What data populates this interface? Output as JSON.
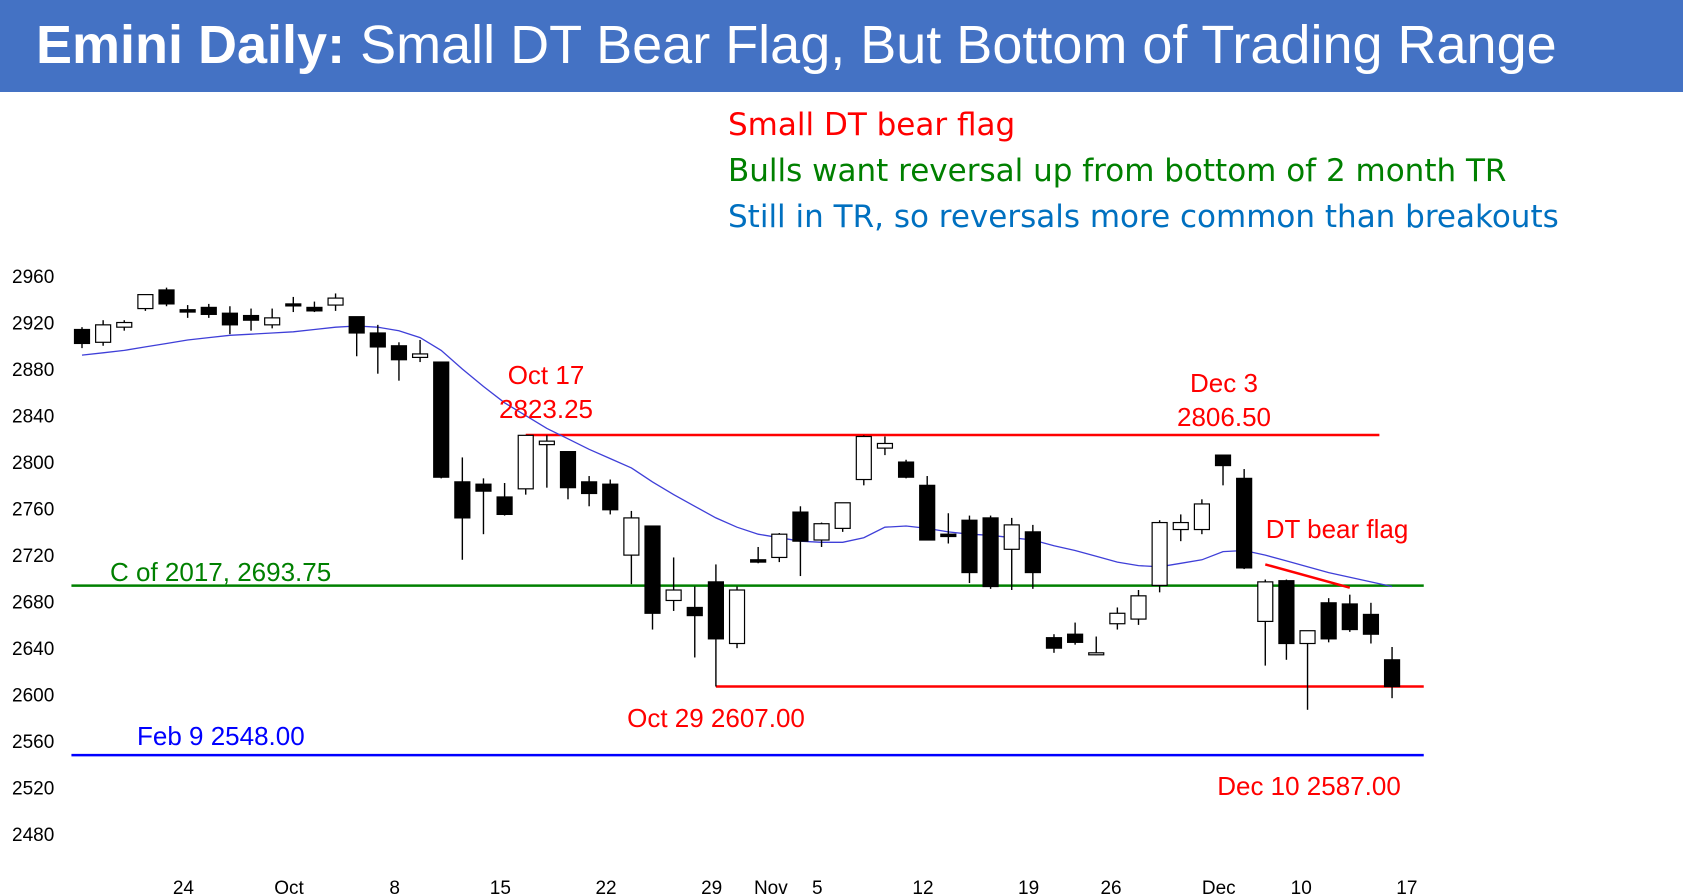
{
  "header": {
    "title_strong": "Emini Daily:",
    "title_rest": " Small DT Bear Flag, But Bottom of Trading Range"
  },
  "notes": [
    {
      "text": "Small DT bear flag",
      "color": "#ff0000"
    },
    {
      "text": "Bulls want reversal up from bottom of 2 month TR",
      "color": "#008000"
    },
    {
      "text": "Still in TR, so reversals more common than breakouts",
      "color": "#0070c0"
    }
  ],
  "colors": {
    "header_bg": "#4472c4",
    "red": "#ff0000",
    "green": "#008000",
    "blue": "#0000ff",
    "ma": "#3f3fd8"
  },
  "chart_data": {
    "type": "candlestick",
    "ylim": [
      2460,
      2980
    ],
    "ticks": [
      2960,
      2920,
      2880,
      2840,
      2800,
      2760,
      2720,
      2680,
      2640,
      2600,
      2560,
      2520,
      2480
    ],
    "x_labels": [
      {
        "bar": 4.8,
        "label": "24"
      },
      {
        "bar": 9.8,
        "label": "Oct"
      },
      {
        "bar": 14.8,
        "label": "8"
      },
      {
        "bar": 19.8,
        "label": "15"
      },
      {
        "bar": 24.8,
        "label": "22"
      },
      {
        "bar": 29.8,
        "label": "29"
      },
      {
        "bar": 32.6,
        "label": "Nov"
      },
      {
        "bar": 34.8,
        "label": "5"
      },
      {
        "bar": 39.8,
        "label": "12"
      },
      {
        "bar": 44.8,
        "label": "19"
      },
      {
        "bar": 48.7,
        "label": "26"
      },
      {
        "bar": 53.8,
        "label": "Dec"
      },
      {
        "bar": 57.7,
        "label": "10"
      },
      {
        "bar": 62.7,
        "label": "17"
      }
    ],
    "bars": [
      [
        2914,
        2916,
        2898,
        2902
      ],
      [
        2903,
        2922,
        2900,
        2918
      ],
      [
        2916,
        2922,
        2913,
        2920
      ],
      [
        2932,
        2944,
        2930,
        2944
      ],
      [
        2948,
        2950,
        2934,
        2936
      ],
      [
        2931,
        2935,
        2924,
        2929
      ],
      [
        2933,
        2936,
        2924,
        2927
      ],
      [
        2928,
        2934,
        2910,
        2918
      ],
      [
        2926,
        2932,
        2913,
        2922
      ],
      [
        2918,
        2932,
        2915,
        2924
      ],
      [
        2936,
        2942,
        2929,
        2935
      ],
      [
        2933,
        2938,
        2929,
        2930
      ],
      [
        2935,
        2945,
        2930,
        2941
      ],
      [
        2925,
        2925,
        2891,
        2911
      ],
      [
        2911,
        2918,
        2876,
        2899
      ],
      [
        2900,
        2903,
        2870,
        2888
      ],
      [
        2890,
        2905,
        2886,
        2893
      ],
      [
        2886,
        2886,
        2786,
        2787
      ],
      [
        2783,
        2804,
        2716,
        2752
      ],
      [
        2781,
        2786,
        2738,
        2775
      ],
      [
        2770,
        2782,
        2754,
        2755
      ],
      [
        2777,
        2823,
        2772,
        2823
      ],
      [
        2815,
        2823,
        2778,
        2818
      ],
      [
        2809,
        2809,
        2768,
        2778
      ],
      [
        2783,
        2788,
        2762,
        2773
      ],
      [
        2781,
        2785,
        2755,
        2759
      ],
      [
        2720,
        2758,
        2695,
        2752
      ],
      [
        2745,
        2745,
        2656,
        2670
      ],
      [
        2681,
        2718,
        2672,
        2690
      ],
      [
        2675,
        2693,
        2632,
        2668
      ],
      [
        2697,
        2712,
        2607,
        2648
      ],
      [
        2644,
        2693,
        2640,
        2690
      ],
      [
        2716,
        2727,
        2713,
        2714
      ],
      [
        2718,
        2739,
        2714,
        2738
      ],
      [
        2757,
        2762,
        2702,
        2732
      ],
      [
        2733,
        2748,
        2727,
        2747
      ],
      [
        2743,
        2765,
        2740,
        2765
      ],
      [
        2785,
        2823,
        2780,
        2822
      ],
      [
        2812,
        2822,
        2806,
        2816
      ],
      [
        2800,
        2802,
        2786,
        2787
      ],
      [
        2780,
        2788,
        2733,
        2733
      ],
      [
        2738,
        2756,
        2730,
        2736
      ],
      [
        2750,
        2754,
        2696,
        2705
      ],
      [
        2752,
        2754,
        2691,
        2693
      ],
      [
        2725,
        2752,
        2690,
        2746
      ],
      [
        2740,
        2746,
        2691,
        2705
      ],
      [
        2649,
        2652,
        2636,
        2640
      ],
      [
        2652,
        2662,
        2643,
        2645
      ],
      [
        2636,
        2650,
        2634,
        2636
      ],
      [
        2661,
        2675,
        2656,
        2670
      ],
      [
        2665,
        2690,
        2660,
        2685
      ],
      [
        2694,
        2750,
        2688,
        2748
      ],
      [
        2742,
        2755,
        2732,
        2748
      ],
      [
        2742,
        2768,
        2738,
        2764
      ],
      [
        2806,
        2806,
        2780,
        2797
      ],
      [
        2786,
        2794,
        2708,
        2709
      ],
      [
        2663,
        2699,
        2625,
        2697
      ],
      [
        2698,
        2699,
        2630,
        2644
      ],
      [
        2644,
        2655,
        2587,
        2655
      ],
      [
        2679,
        2683,
        2645,
        2648
      ],
      [
        2678,
        2686,
        2654,
        2656
      ],
      [
        2669,
        2679,
        2644,
        2652
      ],
      [
        2630,
        2641,
        2597,
        2607
      ]
    ],
    "moving_average": [
      2892,
      2894,
      2896,
      2899,
      2902,
      2905,
      2907,
      2909,
      2910,
      2911,
      2912,
      2914,
      2916,
      2917,
      2916,
      2913,
      2907,
      2896,
      2880,
      2865,
      2851,
      2840,
      2829,
      2820,
      2811,
      2803,
      2795,
      2783,
      2772,
      2762,
      2752,
      2744,
      2738,
      2735,
      2732,
      2731,
      2731,
      2735,
      2744,
      2745,
      2743,
      2740,
      2738,
      2737,
      2735,
      2733,
      2728,
      2724,
      2719,
      2714,
      2711,
      2710,
      2713,
      2716,
      2723,
      2724,
      2720,
      2715,
      2710,
      2705,
      2701,
      2697,
      2693
    ],
    "annotations": [
      {
        "id": "oct17",
        "lines": [
          "Oct 17",
          "2823.25"
        ],
        "color": "#ff0000"
      },
      {
        "id": "dec3",
        "lines": [
          "Dec 3",
          "2806.50"
        ],
        "color": "#ff0000"
      },
      {
        "id": "c2017",
        "lines": [
          "C of 2017, 2693.75"
        ],
        "color": "#008000"
      },
      {
        "id": "oct29",
        "lines": [
          "Oct 29 2607.00"
        ],
        "color": "#ff0000"
      },
      {
        "id": "feb9",
        "lines": [
          "Feb 9 2548.00"
        ],
        "color": "#0000ff"
      },
      {
        "id": "dec10",
        "lines": [
          "Dec 10 2587.00"
        ],
        "color": "#ff0000"
      },
      {
        "id": "dtflag",
        "lines": [
          "DT bear flag"
        ],
        "color": "#ff0000"
      }
    ],
    "levels": [
      {
        "id": "oct17-line",
        "value": 2823.25,
        "from_bar": 21,
        "to_bar": 61.4,
        "color": "#ff0000"
      },
      {
        "id": "oct29-line",
        "value": 2607,
        "from_bar": 30,
        "to_bar": 63.5,
        "color": "#ff0000"
      },
      {
        "id": "c2017-line",
        "value": 2693.75,
        "from_bar": -0.5,
        "to_bar": 63.5,
        "color": "#008000"
      },
      {
        "id": "feb9-line",
        "value": 2548,
        "from_bar": -0.5,
        "to_bar": 63.5,
        "color": "#0000ff"
      }
    ],
    "trend_lines": [
      {
        "id": "dt-flag-line",
        "from": [
          56,
          2712
        ],
        "to": [
          60,
          2692
        ],
        "color": "#ff0000"
      }
    ]
  }
}
